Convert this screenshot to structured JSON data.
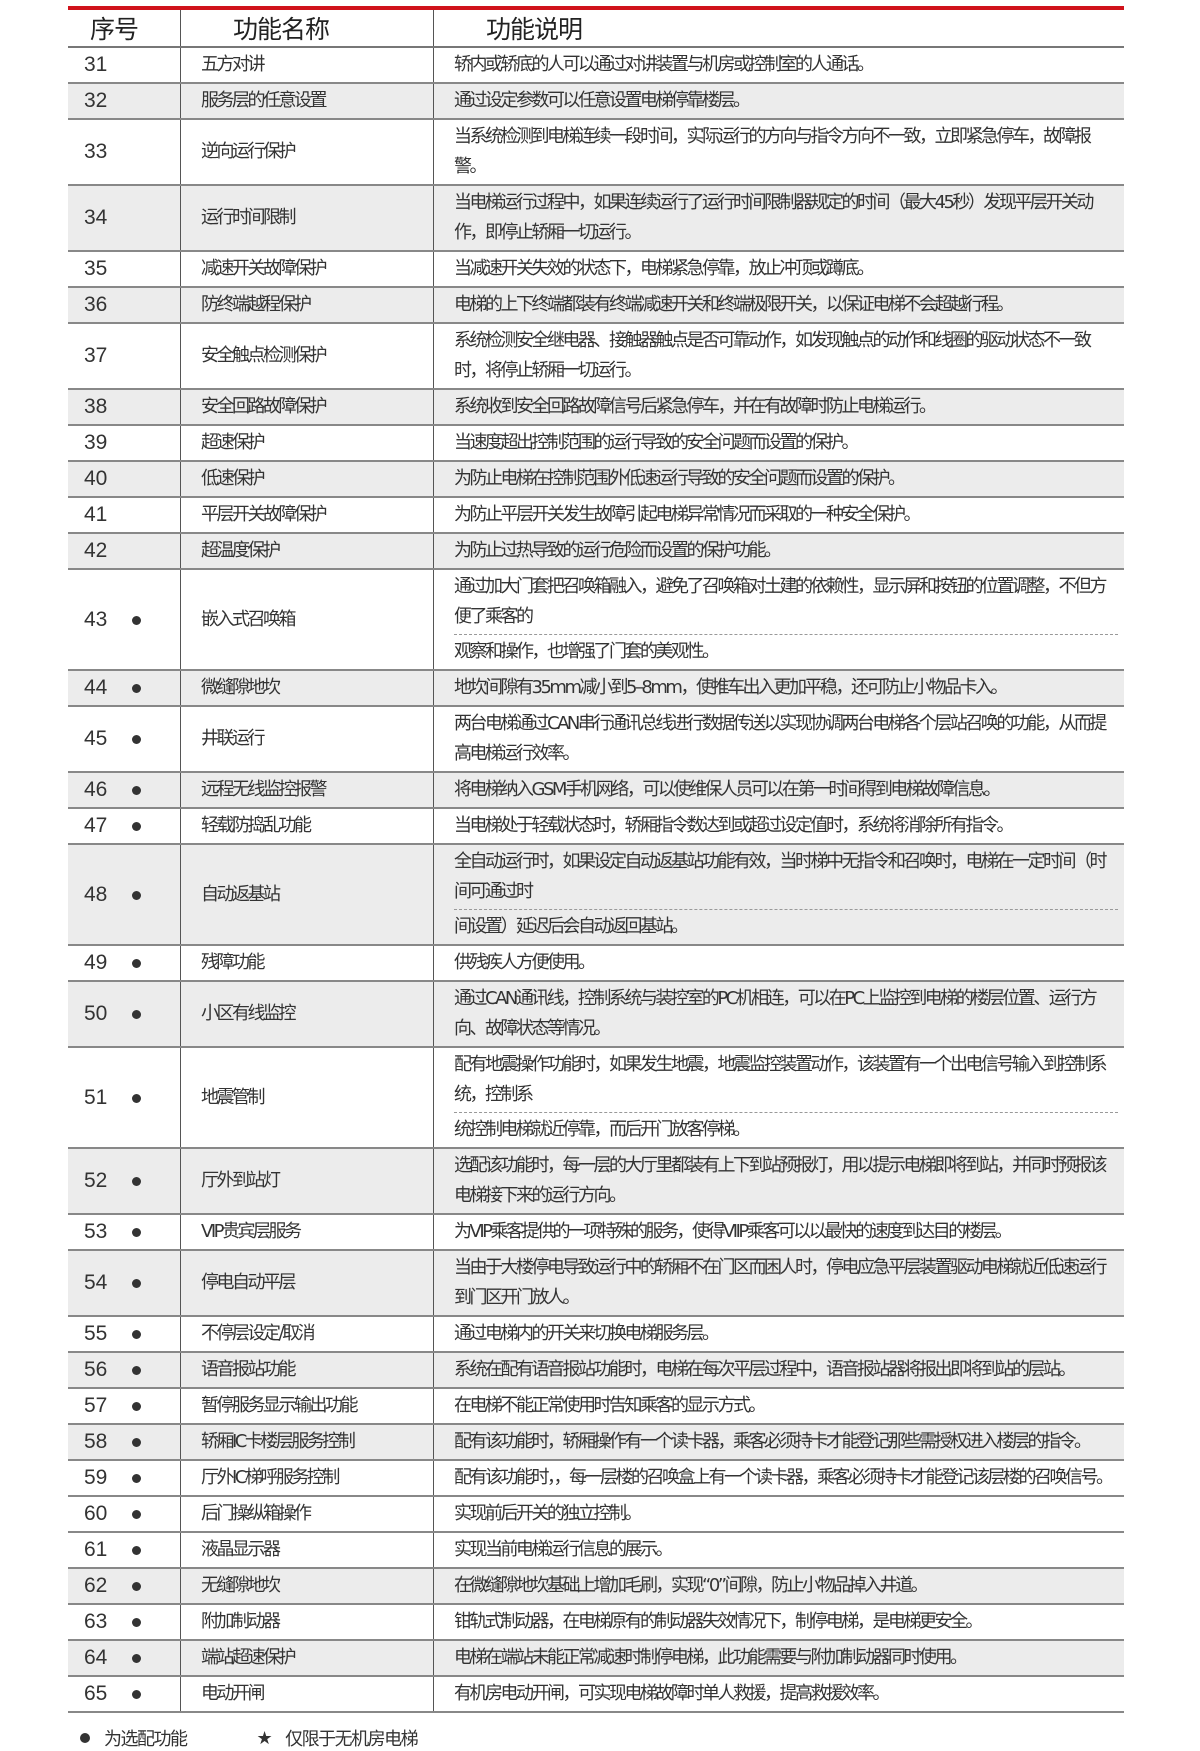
{
  "colors": {
    "header_rule": "#d0121b",
    "row_shade": "#ececec"
  },
  "header": {
    "col_no": "序号",
    "col_name": "功能名称",
    "col_desc": "功能说明"
  },
  "rows": [
    {
      "no": "31",
      "optional": false,
      "shaded": false,
      "name": "五方对讲",
      "desc": [
        "轿内或轿底的人可以通过对讲装置与机房或控制室的人通话。"
      ]
    },
    {
      "no": "32",
      "optional": false,
      "shaded": true,
      "name": "服务层的任意设置",
      "desc": [
        "通过设定参数可以任意设置电梯停靠楼层。"
      ]
    },
    {
      "no": "33",
      "optional": false,
      "shaded": false,
      "name": "逆向运行保护",
      "desc": [
        "当系统检测到电梯连续一段时间，实际运行的方向与指令方向不一致，立即紧急停车，故障报警。"
      ]
    },
    {
      "no": "34",
      "optional": false,
      "shaded": true,
      "name": "运行时间限制",
      "desc": [
        "当电梯运行过程中，如果连续运行了运行时间限制器规定的时间（最大45秒）发现平层开关动作，即停止轿厢一切运行。"
      ]
    },
    {
      "no": "35",
      "optional": false,
      "shaded": false,
      "name": "减速开关故障保护",
      "desc": [
        "当减速开关失效的状态下，电梯紧急停靠，放止冲顶或蹲底。"
      ]
    },
    {
      "no": "36",
      "optional": false,
      "shaded": true,
      "name": "防终端越程保护",
      "desc": [
        "电梯的上下终端都装有终端减速开关和终端极限开关，以保证电梯不会超越行程。"
      ]
    },
    {
      "no": "37",
      "optional": false,
      "shaded": false,
      "name": "安全触点检测保护",
      "desc": [
        "系统检测安全继电器、接触器触点是否可靠动作，如发现触点的动作和线圈的驱动状态不一致时，将停止轿厢一切运行。"
      ]
    },
    {
      "no": "38",
      "optional": false,
      "shaded": true,
      "name": "安全回路故障保护",
      "desc": [
        "系统收到安全回路故障信号后紧急停车，并在有故障时防止电梯运行。"
      ]
    },
    {
      "no": "39",
      "optional": false,
      "shaded": false,
      "name": "超速保护",
      "desc": [
        "当速度超出控制范围的运行导致的安全问题而设置的保护。"
      ]
    },
    {
      "no": "40",
      "optional": false,
      "shaded": true,
      "name": "低速保护",
      "desc": [
        "为防止电梯在控制范围外低速运行导致的安全问题而设置的保护。"
      ]
    },
    {
      "no": "41",
      "optional": false,
      "shaded": false,
      "name": "平层开关故障保护",
      "desc": [
        "为防止平层开关发生故障引起电梯异常情况而采取的一种安全保护。"
      ]
    },
    {
      "no": "42",
      "optional": false,
      "shaded": true,
      "name": "超温度保护",
      "desc": [
        "为防止过热导致的运行危险而设置的保护功能。"
      ]
    },
    {
      "no": "43",
      "optional": true,
      "shaded": false,
      "name": "嵌入式召唤箱",
      "desc": [
        "通过加大门套把召唤箱融入，避免了召唤箱对土建的依赖性，显示屏和按钮的位置调整，不但方便了乘客的",
        "观察和操作，也增强了门套的美观性。"
      ]
    },
    {
      "no": "44",
      "optional": true,
      "shaded": true,
      "name": "微缝隙地坎",
      "desc": [
        "地坎间隙有35mm减小到5–8mm，使推车出入更加平稳，还可防止小物品卡入。"
      ]
    },
    {
      "no": "45",
      "optional": true,
      "shaded": false,
      "name": "井联运行",
      "desc": [
        "两台电梯通过CAN串行通讯总线进行数据传送以实现协调两台电梯各个层站召唤的功能，从而提高电梯运行效率。"
      ]
    },
    {
      "no": "46",
      "optional": true,
      "shaded": true,
      "name": "远程无线监控报警",
      "desc": [
        "将电梯纳入GSM手机网络，可以使维保人员可以在第一时间得到电梯故障信息。"
      ]
    },
    {
      "no": "47",
      "optional": true,
      "shaded": false,
      "name": "轻载防捣乱功能",
      "desc": [
        "当电梯处于轻载状态时，轿厢指令数达到或超过设定值时，系统将消除所有指令。"
      ]
    },
    {
      "no": "48",
      "optional": true,
      "shaded": true,
      "name": "自动返基站",
      "desc": [
        "全自动运行时，如果设定自动返基站功能有效，当时梯中无指令和召唤时，电梯在一定时间（时间可通过时",
        "间设置）延迟后会自动返回基站。"
      ]
    },
    {
      "no": "49",
      "optional": true,
      "shaded": false,
      "name": "残障功能",
      "desc": [
        "供残疾人方便使用。"
      ]
    },
    {
      "no": "50",
      "optional": true,
      "shaded": true,
      "name": "小区有线监控",
      "desc": [
        "通过CAN通讯线，控制系统与装控室的PC机相连，可以在PC上监控到电梯的楼层位置、运行方向、故障状态等情况。"
      ]
    },
    {
      "no": "51",
      "optional": true,
      "shaded": false,
      "name": "地震管制",
      "desc": [
        "配有地震操作功能时，如果发生地震，地震监控装置动作，该装置有一个出电信号输入到控制系统，控制系",
        "统控制电梯就近停靠，而后开门放客停梯。"
      ]
    },
    {
      "no": "52",
      "optional": true,
      "shaded": true,
      "name": "厅外到站灯",
      "desc": [
        "选配该功能时，每一层的大厅里都装有上下到站预报灯，用以提示电梯即将到站，并同时预报该电梯接下来的运行方向。"
      ]
    },
    {
      "no": "53",
      "optional": true,
      "shaded": false,
      "name": "VIP贵宾层服务",
      "desc": [
        "为VIP乘客提供的一项特殊的服务，使得VIIP乘客可以以最快的速度到达目的楼层。"
      ]
    },
    {
      "no": "54",
      "optional": true,
      "shaded": true,
      "name": "停电自动平层",
      "desc": [
        "当由于大楼停电导致运行中的轿厢不在门区而困人时，停电应急平层装置驱动电梯就近低速运行到门区开门放人。"
      ]
    },
    {
      "no": "55",
      "optional": true,
      "shaded": false,
      "name": "不停层设定/取消",
      "desc": [
        "通过电梯内的开关来切换电梯服务层。"
      ]
    },
    {
      "no": "56",
      "optional": true,
      "shaded": true,
      "name": "语音报站功能",
      "desc": [
        "系统在配有语音报站功能时，电梯在每次平层过程中，语音报站器将报出即将到站的层站。"
      ]
    },
    {
      "no": "57",
      "optional": true,
      "shaded": false,
      "name": "暂停服务显示输出功能",
      "desc": [
        "在电梯不能正常使用时告知乘客的显示方式。"
      ]
    },
    {
      "no": "58",
      "optional": true,
      "shaded": true,
      "name": "轿厢IC卡楼层服务控制",
      "desc": [
        "配有该功能时，轿厢操作有一个读卡器，乘客必须持卡才能登记那些需授权进入楼层的指令。"
      ]
    },
    {
      "no": "59",
      "optional": true,
      "shaded": false,
      "name": "厅外IC梯呼服务控制",
      "desc": [
        "配有该功能时，，每一层楼的召唤盒上有一个读卡器，乘客必须持卡才能登记该层楼的召唤信号。"
      ]
    },
    {
      "no": "60",
      "optional": true,
      "shaded": false,
      "name": "后门操纵箱操作",
      "desc": [
        "实现前后开关的独立控制。"
      ]
    },
    {
      "no": "61",
      "optional": true,
      "shaded": false,
      "name": "液晶显示器",
      "desc": [
        "实现当前电梯运行信息的展示。"
      ]
    },
    {
      "no": "62",
      "optional": true,
      "shaded": true,
      "name": "无缝隙地坎",
      "desc": [
        "在微缝隙地坎基础上增加毛刷，实现“0”间隙，防止小物品掉入井道。"
      ]
    },
    {
      "no": "63",
      "optional": true,
      "shaded": false,
      "name": "附加制动器",
      "desc": [
        "钳轨式制动器，在电梯原有的制动器失效情况下，制停电梯，是电梯更安全。"
      ]
    },
    {
      "no": "64",
      "optional": true,
      "shaded": true,
      "name": "端站超速保护",
      "desc": [
        "电梯在端站未能正常减速时制停电梯，此功能需要与附加制动器同时使用。"
      ]
    },
    {
      "no": "65",
      "optional": true,
      "shaded": false,
      "name": "电动开闸",
      "desc": [
        "有机房电动开闸，可实现电梯故障时单人救援，提高救援效率。"
      ]
    }
  ],
  "legend": {
    "optional_icon": "bullet-dot",
    "optional_label": "为选配功能",
    "star_icon": "star",
    "star_glyph": "★",
    "star_label": "仅限于无机房电梯"
  }
}
